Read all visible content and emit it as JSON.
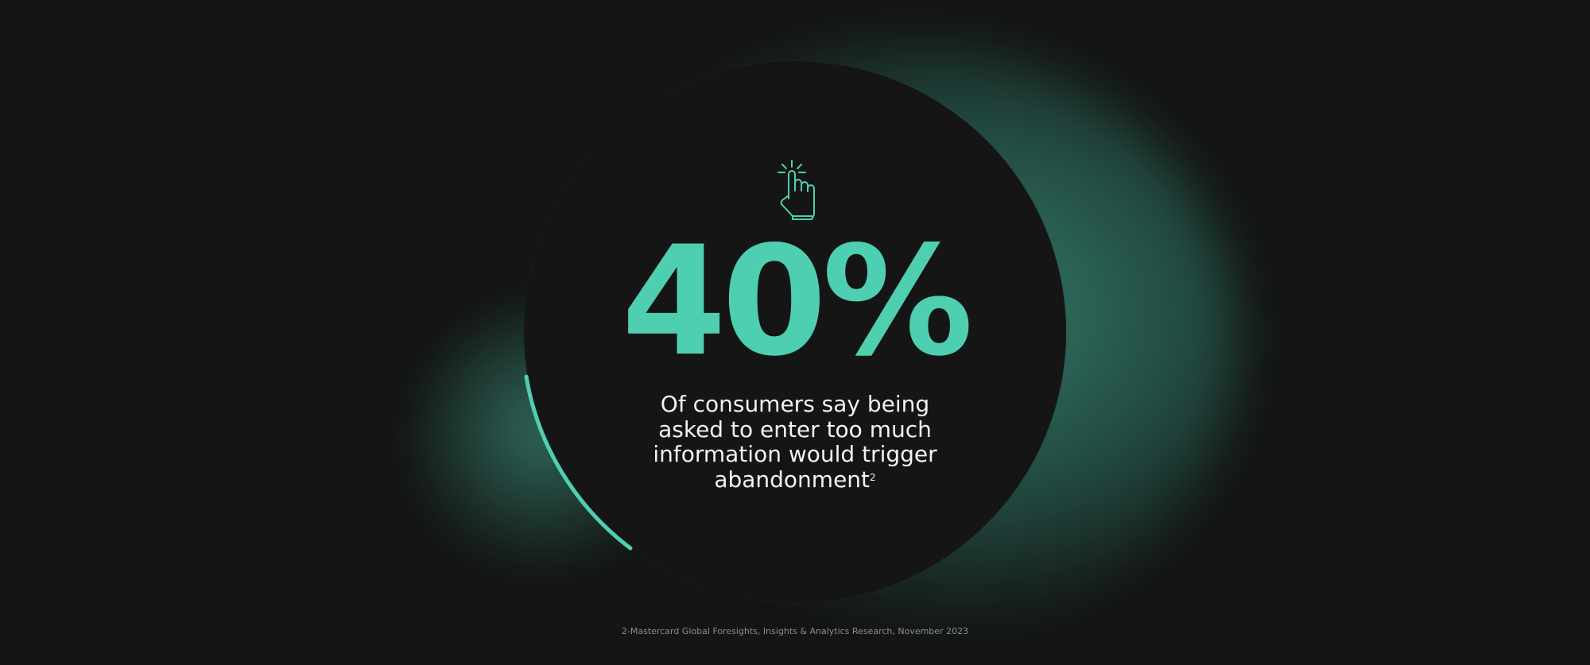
{
  "accent_color": "#4fcfb1",
  "background_color": "#141514",
  "icon": "hand-pointer-click-icon",
  "stat": {
    "value": "40%",
    "progress_percent": 40
  },
  "description": {
    "lines": [
      "Of consumers say being",
      "asked to enter too much",
      "information would trigger",
      "abandonment"
    ],
    "footnote_marker": "2"
  },
  "footnote": "2-Mastercard Global Foresights, Insights & Analytics Research, November 2023"
}
